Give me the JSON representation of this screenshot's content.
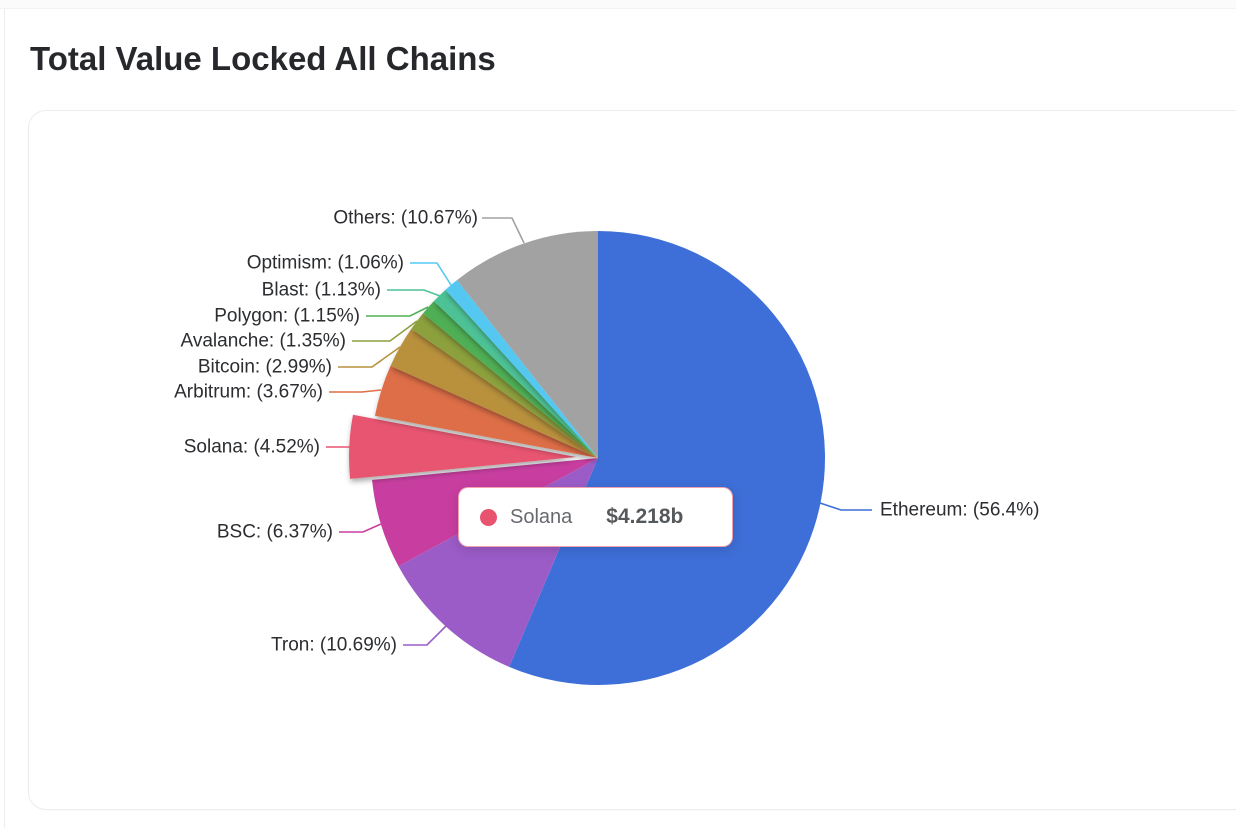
{
  "page": {
    "title": "Total Value Locked All Chains"
  },
  "chart_data": {
    "type": "pie",
    "title": "Total Value Locked All Chains",
    "legend_position": "none",
    "labels_style": "outside-with-leader-lines",
    "slices": [
      {
        "name": "Ethereum",
        "label": "Ethereum: (56.4%)",
        "percent": 56.4,
        "color": "#3E6FD8",
        "exploded": false
      },
      {
        "name": "Tron",
        "label": "Tron: (10.69%)",
        "percent": 10.69,
        "color": "#9B5CC8",
        "exploded": false
      },
      {
        "name": "BSC",
        "label": "BSC: (6.37%)",
        "percent": 6.37,
        "color": "#C83EA0",
        "exploded": false
      },
      {
        "name": "Solana",
        "label": "Solana: (4.52%)",
        "percent": 4.52,
        "color": "#E85470",
        "exploded": true,
        "value": "$4.218b"
      },
      {
        "name": "Arbitrum",
        "label": "Arbitrum: (3.67%)",
        "percent": 3.67,
        "color": "#DD6E46",
        "exploded": false
      },
      {
        "name": "Bitcoin",
        "label": "Bitcoin: (2.99%)",
        "percent": 2.99,
        "color": "#B9913C",
        "exploded": false
      },
      {
        "name": "Avalanche",
        "label": "Avalanche: (1.35%)",
        "percent": 1.35,
        "color": "#8CA03C",
        "exploded": false
      },
      {
        "name": "Polygon",
        "label": "Polygon: (1.15%)",
        "percent": 1.15,
        "color": "#50AF55",
        "exploded": false
      },
      {
        "name": "Blast",
        "label": "Blast: (1.13%)",
        "percent": 1.13,
        "color": "#4EC296",
        "exploded": false
      },
      {
        "name": "Optimism",
        "label": "Optimism: (1.06%)",
        "percent": 1.06,
        "color": "#55C8F2",
        "exploded": false
      },
      {
        "name": "Others",
        "label": "Others: (10.67%)",
        "percent": 10.67,
        "color": "#A2A2A2",
        "exploded": false
      }
    ],
    "tooltip": {
      "series": "Solana",
      "value": "$4.218b",
      "dot_color": "#E8536F"
    }
  }
}
